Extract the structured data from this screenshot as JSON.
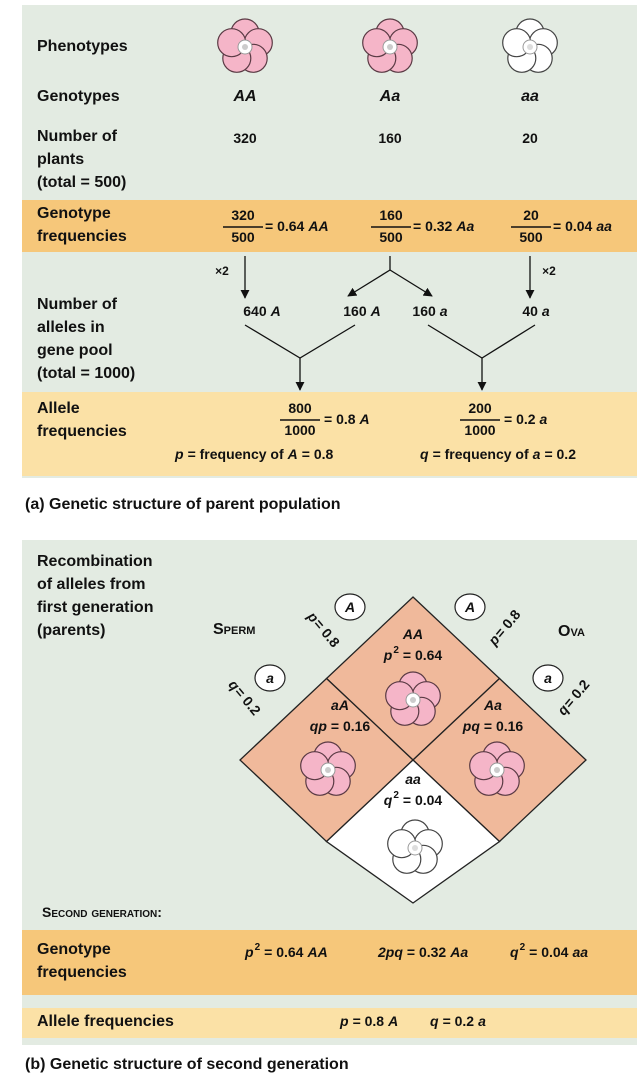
{
  "panel_a": {
    "row_labels": {
      "phenotypes": "Phenotypes",
      "genotypes": "Genotypes",
      "number_of_plants": [
        "Number of",
        "plants",
        "(total = 500)"
      ]
    },
    "columns": [
      {
        "genotype": "AA",
        "plants": "320"
      },
      {
        "genotype": "Aa",
        "plants": "160"
      },
      {
        "genotype": "aa",
        "plants": "20"
      }
    ],
    "genotype_frequencies": {
      "label": [
        "Genotype",
        "frequencies"
      ],
      "items": [
        {
          "numerator": "320",
          "denominator": "500",
          "value": "= 0.64",
          "genotype": "AA"
        },
        {
          "numerator": "160",
          "denominator": "500",
          "value": "= 0.32",
          "genotype": "Aa"
        },
        {
          "numerator": "20",
          "denominator": "500",
          "value": "= 0.04",
          "genotype": "aa"
        }
      ]
    },
    "multipliers": [
      "×2",
      "×2"
    ],
    "alleles": {
      "label": [
        "Number of",
        "alleles in",
        "gene pool",
        "(total = 1000)"
      ],
      "items": [
        {
          "count": "640",
          "allele": "A"
        },
        {
          "count": "160",
          "allele": "A"
        },
        {
          "count": "160",
          "allele": "a"
        },
        {
          "count": "40",
          "allele": "a"
        }
      ]
    },
    "allele_frequencies": {
      "label": [
        "Allele",
        "frequencies"
      ],
      "items": [
        {
          "numerator": "800",
          "denominator": "1000",
          "value": "= 0.8",
          "allele": "A",
          "symbol": "p",
          "text": "= frequency of",
          "frequency": "= 0.8"
        },
        {
          "numerator": "200",
          "denominator": "1000",
          "value": "= 0.2",
          "allele": "a",
          "symbol": "q",
          "text": "= frequency of",
          "frequency": "= 0.2"
        }
      ]
    },
    "caption": "(a) Genetic structure of parent population"
  },
  "panel_b": {
    "heading": [
      "Recombination",
      "of alleles from",
      "first generation",
      "(parents)"
    ],
    "sperm": "Sperm",
    "ova": "Ova",
    "gametes": {
      "sperm": [
        {
          "allele": "A",
          "symbol": "p",
          "value": "= 0.8"
        },
        {
          "allele": "a",
          "symbol": "q",
          "value": "= 0.2"
        }
      ],
      "ova": [
        {
          "allele": "A",
          "symbol": "p",
          "value": "= 0.8"
        },
        {
          "allele": "a",
          "symbol": "q",
          "value": "= 0.2"
        }
      ]
    },
    "cells": [
      {
        "genotype": "AA",
        "symbol": "p",
        "exponent": "2",
        "value": "= 0.64"
      },
      {
        "genotype": "aA",
        "symbol": "qp",
        "value": "= 0.16"
      },
      {
        "genotype": "Aa",
        "symbol": "pq",
        "value": "= 0.16"
      },
      {
        "genotype": "aa",
        "symbol": "q",
        "exponent": "2",
        "value": "= 0.04"
      }
    ],
    "second_generation": {
      "title": "Second generation:",
      "genotype_frequencies": {
        "label": [
          "Genotype",
          "frequencies"
        ],
        "items": [
          {
            "symbol": "p",
            "exponent": "2",
            "value": "= 0.64",
            "genotype": "AA"
          },
          {
            "symbol": "2pq",
            "value": "= 0.32",
            "genotype": "Aa"
          },
          {
            "symbol": "q",
            "exponent": "2",
            "value": "= 0.04",
            "genotype": "aa"
          }
        ]
      },
      "allele_frequencies": {
        "label": "Allele frequencies",
        "items": [
          {
            "symbol": "p",
            "value": "= 0.8",
            "allele": "A"
          },
          {
            "symbol": "q",
            "value": "= 0.2",
            "allele": "a"
          }
        ]
      }
    },
    "caption": "(b) Genetic structure of second generation"
  }
}
